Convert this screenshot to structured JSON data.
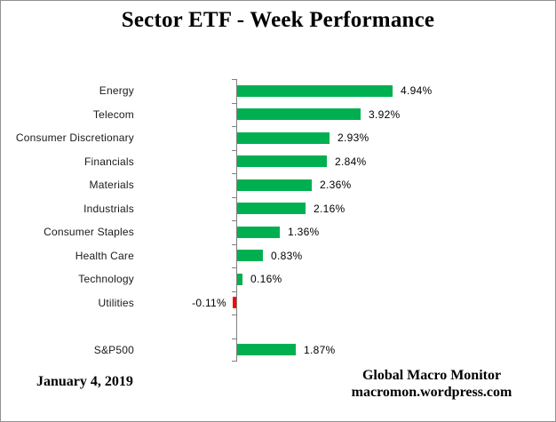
{
  "chart_data": {
    "type": "bar",
    "orientation": "horizontal",
    "title": "Sector ETF - Week Performance",
    "categories": [
      "Energy",
      "Telecom",
      "Consumer Discretionary",
      "Financials",
      "Materials",
      "Industrials",
      "Consumer Staples",
      "Health Care",
      "Technology",
      "Utilities",
      "",
      "S&P500"
    ],
    "values": [
      4.94,
      3.92,
      2.93,
      2.84,
      2.36,
      2.16,
      1.36,
      0.83,
      0.16,
      -0.11,
      null,
      1.87
    ],
    "value_labels": [
      "4.94%",
      "3.92%",
      "2.93%",
      "2.84%",
      "2.36%",
      "2.16%",
      "1.36%",
      "0.83%",
      "0.16%",
      "-0.11%",
      "",
      "1.87%"
    ],
    "xlabel": "",
    "ylabel": "",
    "grid": false,
    "legend": false,
    "positive_color": "#00B050",
    "negative_color": "#FF0000",
    "axis_color": "#808080"
  },
  "footer": {
    "date": "January 4, 2019",
    "credit_line1": "Global Macro Monitor",
    "credit_line2": "macromon.wordpress.com"
  }
}
